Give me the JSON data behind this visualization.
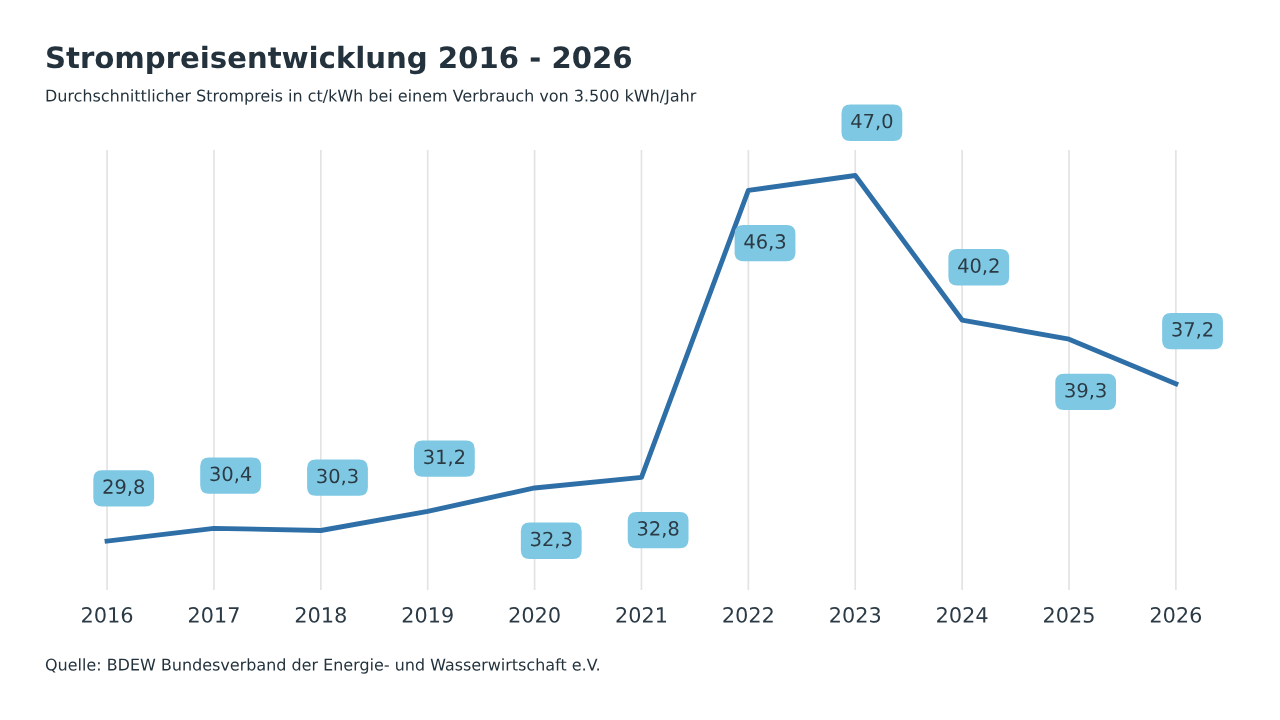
{
  "chart_data": {
    "type": "line",
    "title": "Strompreisentwicklung 2016 - 2026",
    "subtitle": "Durchschnittlicher Strompreis in ct/kWh bei einem Verbrauch von 3.500 kWh/Jahr",
    "categories": [
      "2016",
      "2017",
      "2018",
      "2019",
      "2020",
      "2021",
      "2022",
      "2023",
      "2024",
      "2025",
      "2026"
    ],
    "series": [
      {
        "color": "#2f6fa7",
        "values": [
          29.8,
          30.4,
          30.3,
          31.2,
          32.3,
          32.8,
          46.3,
          47.0,
          40.2,
          39.3,
          37.2
        ],
        "value_labels": [
          "29,8",
          "30,4",
          "30,3",
          "31,2",
          "32,3",
          "32,8",
          "46,3",
          "47,0",
          "40,2",
          "39,3",
          "37,2"
        ]
      }
    ],
    "ylim": [
      27.5,
      48.2
    ],
    "tick_labels": "x",
    "grid": "x",
    "marker": "none",
    "line_style": "solid",
    "legend": false,
    "annotations": [
      "Quelle: BDEW Bundesverband der Energie- und Wasserwirtschaft e.V."
    ]
  }
}
